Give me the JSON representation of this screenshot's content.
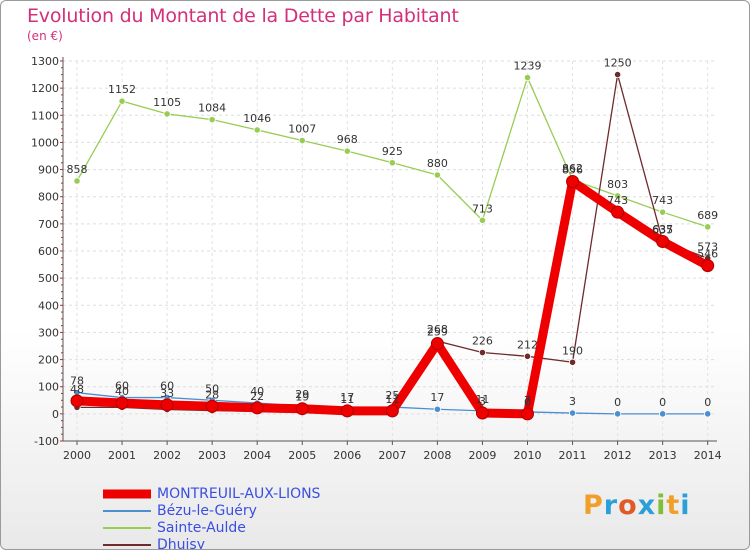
{
  "header": {
    "title": "Evolution du Montant de la Dette par Habitant",
    "subtitle": "(en €)"
  },
  "logo": {
    "letters": [
      "P",
      "r",
      "o",
      "x",
      "i",
      "t",
      "i"
    ],
    "colors": [
      "#f0a02a",
      "#2a9fd8",
      "#e05a28",
      "#2a9fd8",
      "#7fbf3a",
      "#f0a02a",
      "#2a9fd8"
    ]
  },
  "chart_data": {
    "type": "line",
    "title": "Evolution du Montant de la Dette par Habitant",
    "ylabel": "(en €)",
    "xlabel": "",
    "ylim": [
      -100,
      1300
    ],
    "yticks": [
      "-100",
      "0",
      "100",
      "200",
      "300",
      "400",
      "500",
      "600",
      "700",
      "800",
      "900",
      "1000",
      "1100",
      "1200",
      "1300"
    ],
    "categories": [
      "2000",
      "2001",
      "2002",
      "2003",
      "2004",
      "2005",
      "2006",
      "2007",
      "2008",
      "2009",
      "2010",
      "2011",
      "2012",
      "2013",
      "2014"
    ],
    "series": [
      {
        "name": "Sainte-Aulde",
        "color": "#99cc55",
        "values": [
          858,
          1152,
          1105,
          1084,
          1046,
          1007,
          968,
          925,
          880,
          713,
          1239,
          862,
          803,
          743,
          689
        ],
        "labels": [
          "858",
          "1152",
          "1105",
          "1084",
          "1046",
          "1007",
          "968",
          "925",
          "880",
          "713",
          "1239",
          "862",
          "803",
          "743",
          "689"
        ]
      },
      {
        "name": "Bézu-le-Guéry",
        "color": "#4b8fd0",
        "values": [
          78,
          60,
          60,
          50,
          40,
          29,
          17,
          25,
          17,
          11,
          7,
          3,
          0,
          0,
          0
        ],
        "labels": [
          "78",
          "60",
          "60",
          "50",
          "40",
          "29",
          "17",
          "25",
          "17",
          "11",
          "7",
          "3",
          "0",
          "0",
          "0"
        ]
      },
      {
        "name": "Dhuisy",
        "color": "#6e2b2b",
        "values": [
          24,
          24,
          16,
          12,
          9,
          5,
          4,
          8,
          268,
          226,
          212,
          190,
          1250,
          637,
          573
        ],
        "labels": [
          "",
          "",
          "",
          "",
          "",
          "",
          "",
          "",
          "268",
          "226",
          "212",
          "190",
          "1250",
          "637",
          "573"
        ]
      },
      {
        "name": "MONTREUIL-AUX-LIONS",
        "color": "#ee0000",
        "values": [
          48,
          40,
          33,
          28,
          22,
          19,
          11,
          11,
          259,
          3,
          0,
          856,
          743,
          635,
          546
        ],
        "labels": [
          "48",
          "40",
          "33",
          "28",
          "22",
          "19",
          "11",
          "11",
          "259",
          "3",
          "0",
          "856",
          "743",
          "635",
          "546"
        ]
      }
    ],
    "legend": [
      "MONTREUIL-AUX-LIONS",
      "Bézu-le-Guéry",
      "Sainte-Aulde",
      "Dhuisy"
    ]
  }
}
